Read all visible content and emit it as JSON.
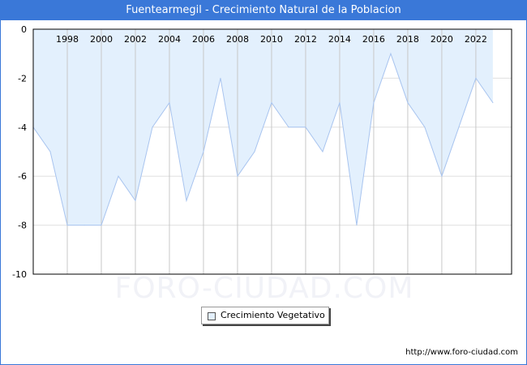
{
  "title": "Fuentearmegil - Crecimiento Natural de la Poblacion",
  "footer_url": "http://www.foro-ciudad.com",
  "watermark": "FORO-CIUDAD.COM",
  "colors": {
    "fill": "#e3f0fd",
    "line": "#a8c4ef",
    "titlebar": "#3a78d8"
  },
  "chart_data": {
    "type": "area",
    "title": "Fuentearmegil - Crecimiento Natural de la Poblacion",
    "xlabel": "",
    "ylabel": "",
    "x": [
      1996,
      1997,
      1998,
      1999,
      2000,
      2001,
      2002,
      2003,
      2004,
      2005,
      2006,
      2007,
      2008,
      2009,
      2010,
      2011,
      2012,
      2013,
      2014,
      2015,
      2016,
      2017,
      2018,
      2019,
      2020,
      2021,
      2022,
      2023
    ],
    "series": [
      {
        "name": "Crecimiento Vegetativo",
        "values": [
          -4,
          -5,
          -8,
          -8,
          -8,
          -6,
          -7,
          -4,
          -3,
          -7,
          -5,
          -2,
          -6,
          -5,
          -3,
          -4,
          -4,
          -5,
          -3,
          -8,
          -3,
          -1,
          -3,
          -4,
          -6,
          -4,
          -2,
          -3
        ]
      }
    ],
    "xlim": [
      1996,
      2024.1
    ],
    "ylim": [
      -10,
      0
    ],
    "x_ticks": [
      "1998",
      "2000",
      "2002",
      "2004",
      "2006",
      "2008",
      "2010",
      "2012",
      "2014",
      "2016",
      "2018",
      "2020",
      "2022"
    ],
    "y_ticks": [
      "0",
      "-2",
      "-4",
      "-6",
      "-8",
      "-10"
    ],
    "grid": true,
    "legend": "bottom-center"
  }
}
